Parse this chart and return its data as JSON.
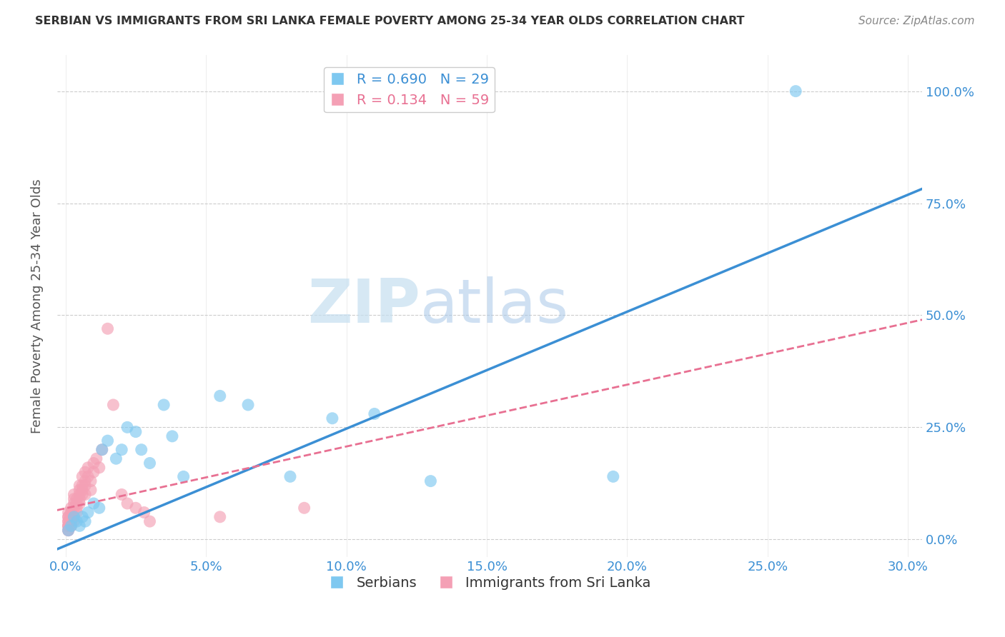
{
  "title": "SERBIAN VS IMMIGRANTS FROM SRI LANKA FEMALE POVERTY AMONG 25-34 YEAR OLDS CORRELATION CHART",
  "source": "Source: ZipAtlas.com",
  "ylabel": "Female Poverty Among 25-34 Year Olds",
  "xlabel_ticks": [
    0.0,
    0.05,
    0.1,
    0.15,
    0.2,
    0.25,
    0.3
  ],
  "ylabel_ticks": [
    0.0,
    0.25,
    0.5,
    0.75,
    1.0
  ],
  "xlim": [
    -0.003,
    0.305
  ],
  "ylim": [
    -0.04,
    1.08
  ],
  "legend_label_blue": "Serbians",
  "legend_label_pink": "Immigrants from Sri Lanka",
  "R_blue": 0.69,
  "N_blue": 29,
  "R_pink": 0.134,
  "N_pink": 59,
  "blue_color": "#7ec8f0",
  "pink_color": "#f4a0b5",
  "blue_line_color": "#3b8fd4",
  "pink_line_color": "#e87092",
  "serbian_x": [
    0.001,
    0.002,
    0.003,
    0.004,
    0.005,
    0.006,
    0.007,
    0.008,
    0.01,
    0.012,
    0.013,
    0.015,
    0.018,
    0.02,
    0.022,
    0.025,
    0.027,
    0.03,
    0.035,
    0.038,
    0.042,
    0.055,
    0.065,
    0.08,
    0.095,
    0.11,
    0.13,
    0.195,
    0.26
  ],
  "serbian_y": [
    0.02,
    0.03,
    0.05,
    0.04,
    0.03,
    0.05,
    0.04,
    0.06,
    0.08,
    0.07,
    0.2,
    0.22,
    0.18,
    0.2,
    0.25,
    0.24,
    0.2,
    0.17,
    0.3,
    0.23,
    0.14,
    0.32,
    0.3,
    0.14,
    0.27,
    0.28,
    0.13,
    0.14,
    1.0
  ],
  "srilanka_x": [
    0.001,
    0.001,
    0.001,
    0.001,
    0.001,
    0.001,
    0.001,
    0.001,
    0.001,
    0.001,
    0.002,
    0.002,
    0.002,
    0.002,
    0.002,
    0.002,
    0.002,
    0.002,
    0.003,
    0.003,
    0.003,
    0.003,
    0.003,
    0.003,
    0.004,
    0.004,
    0.004,
    0.004,
    0.005,
    0.005,
    0.005,
    0.005,
    0.005,
    0.006,
    0.006,
    0.006,
    0.006,
    0.007,
    0.007,
    0.007,
    0.007,
    0.008,
    0.008,
    0.009,
    0.009,
    0.01,
    0.01,
    0.011,
    0.012,
    0.013,
    0.015,
    0.017,
    0.02,
    0.022,
    0.025,
    0.028,
    0.03,
    0.055,
    0.085
  ],
  "srilanka_y": [
    0.02,
    0.03,
    0.04,
    0.05,
    0.03,
    0.02,
    0.04,
    0.03,
    0.05,
    0.06,
    0.03,
    0.04,
    0.05,
    0.06,
    0.04,
    0.07,
    0.03,
    0.06,
    0.04,
    0.05,
    0.08,
    0.07,
    0.1,
    0.09,
    0.06,
    0.08,
    0.07,
    0.09,
    0.1,
    0.12,
    0.08,
    0.11,
    0.09,
    0.12,
    0.1,
    0.14,
    0.11,
    0.13,
    0.1,
    0.15,
    0.12,
    0.14,
    0.16,
    0.13,
    0.11,
    0.17,
    0.15,
    0.18,
    0.16,
    0.2,
    0.47,
    0.3,
    0.1,
    0.08,
    0.07,
    0.06,
    0.04,
    0.05,
    0.07
  ],
  "blue_line_x0": -0.003,
  "blue_line_x1": 0.305,
  "blue_line_y0": -0.022,
  "blue_line_y1": 0.782,
  "pink_line_x0": -0.003,
  "pink_line_x1": 0.305,
  "pink_line_y0": 0.065,
  "pink_line_y1": 0.49,
  "watermark_zip": "ZIP",
  "watermark_atlas": "atlas",
  "background_color": "#ffffff",
  "grid_color": "#cccccc"
}
